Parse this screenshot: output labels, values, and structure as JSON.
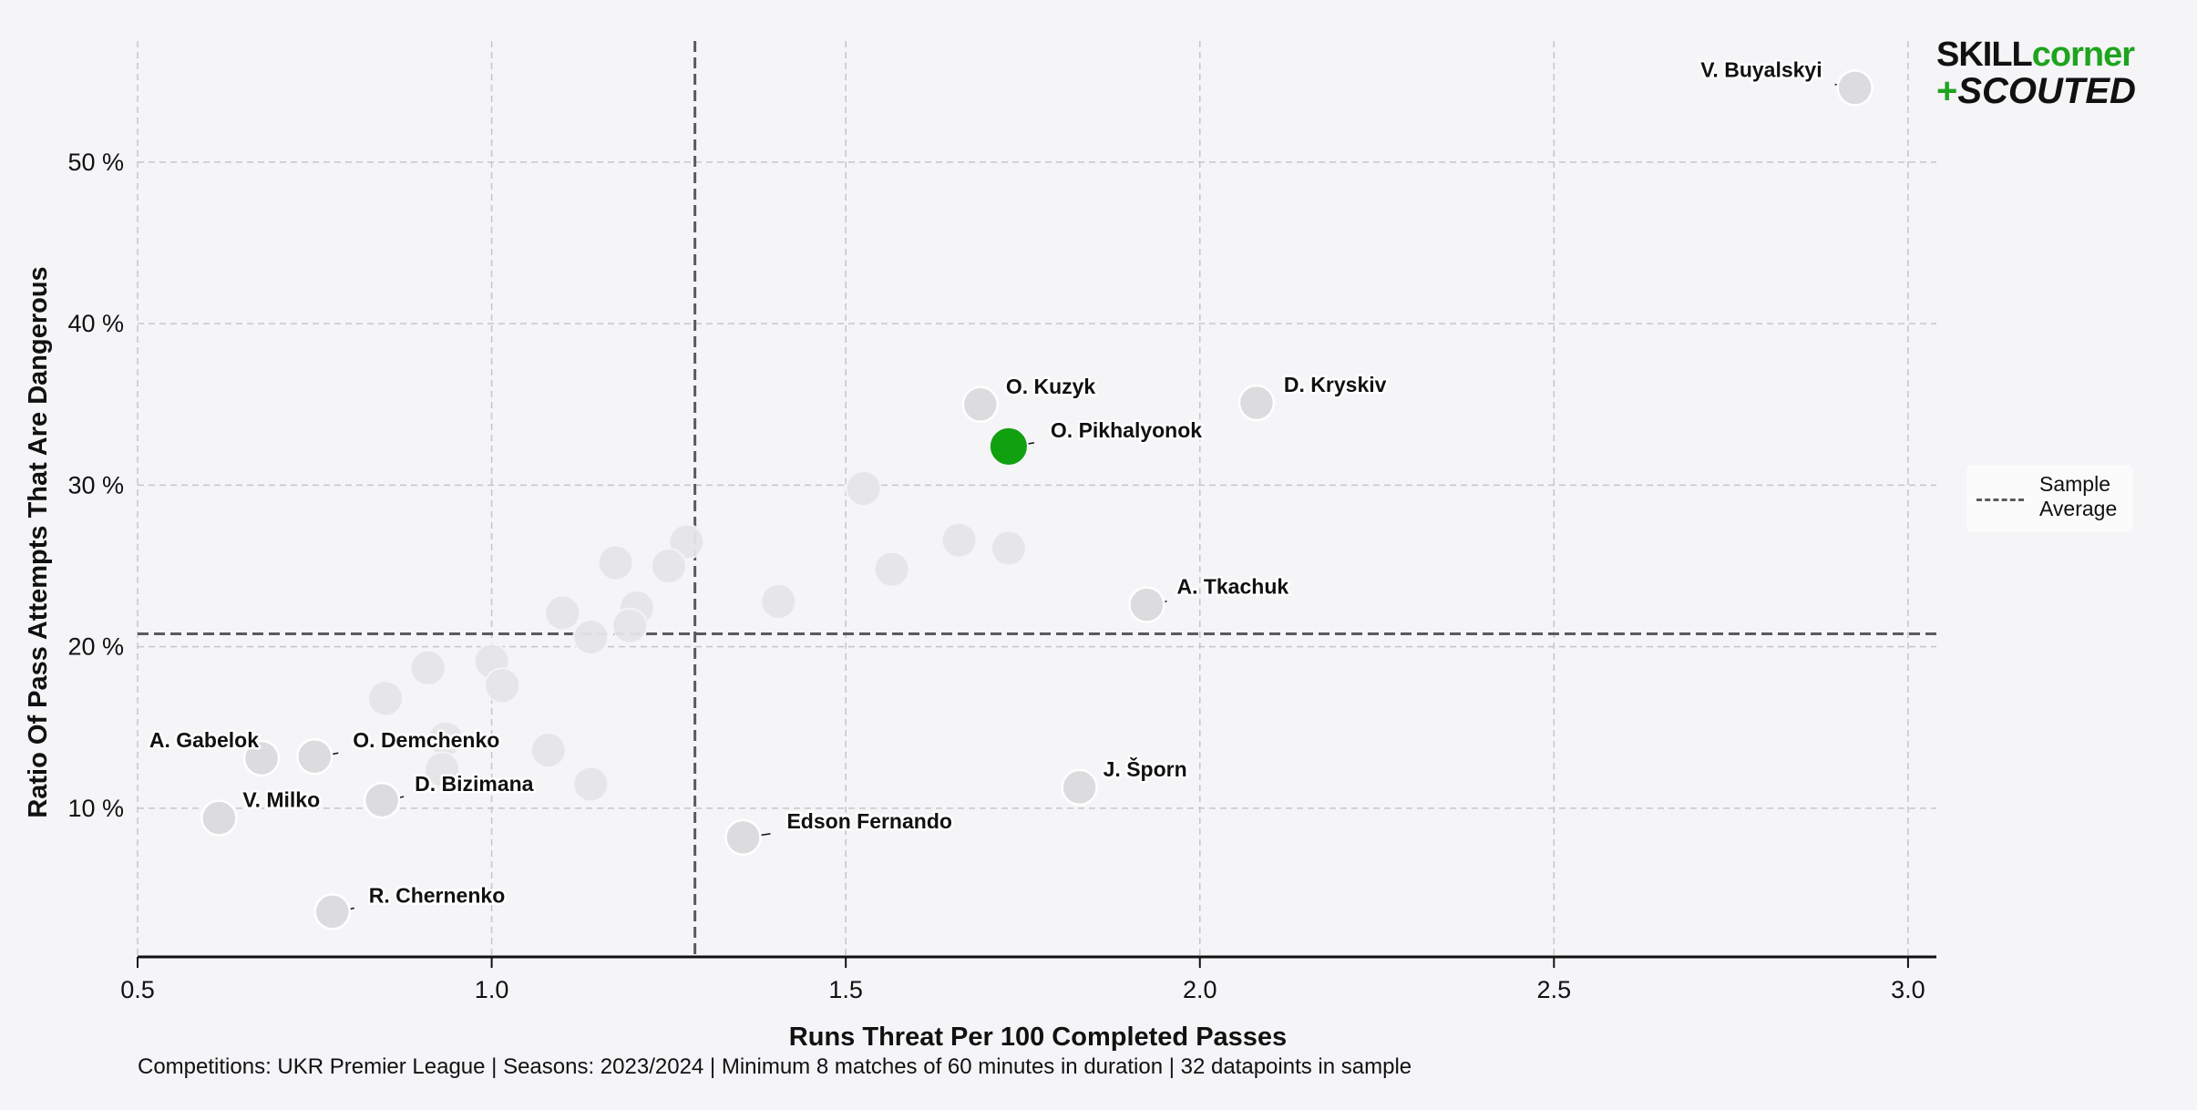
{
  "chart_data": {
    "type": "scatter",
    "title": "",
    "xlabel": "Runs Threat Per 100 Completed Passes",
    "ylabel": "Ratio Of Pass Attempts That Are Dangerous",
    "xlim": [
      0.5,
      3.04
    ],
    "ylim": [
      0.8,
      57.5
    ],
    "xticks": [
      0.5,
      1.0,
      1.5,
      2.0,
      2.5,
      3.0
    ],
    "xtick_labels": [
      "0.5",
      "1.0",
      "1.5",
      "2.0",
      "2.5",
      "3.0"
    ],
    "yticks": [
      10,
      20,
      30,
      40,
      50
    ],
    "ytick_labels": [
      "10 %",
      "20 %",
      "30 %",
      "40 %",
      "50 %"
    ],
    "grid": true,
    "legend": {
      "position": "right",
      "entries": [
        "Sample\nAverage"
      ]
    },
    "reference_lines": {
      "x_average": 1.287,
      "y_average": 20.8
    },
    "colors": {
      "highlight": "#10a010",
      "point": "#dcdbde",
      "background_point": "#e6e5e8",
      "reference": "#5b5b5e"
    },
    "labeled_points": [
      {
        "name": "V. Buyalskyi",
        "x": 2.925,
        "y": 54.6,
        "highlight": false
      },
      {
        "name": "O. Kuzyk",
        "x": 1.69,
        "y": 35.0,
        "highlight": false
      },
      {
        "name": "D. Kryskiv",
        "x": 2.08,
        "y": 35.1,
        "highlight": false
      },
      {
        "name": "O. Pikhalyonok",
        "x": 1.73,
        "y": 32.4,
        "highlight": true
      },
      {
        "name": "A. Tkachuk",
        "x": 1.925,
        "y": 22.6,
        "highlight": false
      },
      {
        "name": "J. Šporn",
        "x": 1.83,
        "y": 11.3,
        "highlight": false
      },
      {
        "name": "Edson Fernando",
        "x": 1.355,
        "y": 8.2,
        "highlight": false
      },
      {
        "name": "A. Gabelok",
        "x": 0.675,
        "y": 13.1,
        "highlight": false
      },
      {
        "name": "O. Demchenko",
        "x": 0.75,
        "y": 13.2,
        "highlight": false
      },
      {
        "name": "D. Bizimana",
        "x": 0.845,
        "y": 10.5,
        "highlight": false
      },
      {
        "name": "V. Milko",
        "x": 0.615,
        "y": 9.4,
        "highlight": false
      },
      {
        "name": "R. Chernenko",
        "x": 0.775,
        "y": 3.6,
        "highlight": false
      }
    ],
    "background_points": [
      {
        "x": 1.275,
        "y": 26.5
      },
      {
        "x": 1.175,
        "y": 25.2
      },
      {
        "x": 1.25,
        "y": 25.0
      },
      {
        "x": 1.1,
        "y": 22.1
      },
      {
        "x": 1.205,
        "y": 22.4
      },
      {
        "x": 1.14,
        "y": 20.6
      },
      {
        "x": 1.195,
        "y": 21.3
      },
      {
        "x": 1.0,
        "y": 19.1
      },
      {
        "x": 1.015,
        "y": 17.6
      },
      {
        "x": 0.91,
        "y": 18.7
      },
      {
        "x": 0.85,
        "y": 16.8
      },
      {
        "x": 0.935,
        "y": 14.3
      },
      {
        "x": 1.08,
        "y": 13.6
      },
      {
        "x": 1.14,
        "y": 11.5
      },
      {
        "x": 0.93,
        "y": 12.4
      },
      {
        "x": 1.525,
        "y": 29.8
      },
      {
        "x": 1.565,
        "y": 24.8
      },
      {
        "x": 1.66,
        "y": 26.6
      },
      {
        "x": 1.73,
        "y": 26.1
      },
      {
        "x": 1.405,
        "y": 22.8
      }
    ]
  },
  "footnote": "Competitions: UKR Premier League | Seasons: 2023/2024 | Minimum 8 matches of 60 minutes in duration | 32 datapoints in sample",
  "legend_label": "Sample\nAverage",
  "logo": {
    "line1_a": "SKILL",
    "line1_b": "corner",
    "line2_plus": "+",
    "line2": "SCOUTED"
  }
}
